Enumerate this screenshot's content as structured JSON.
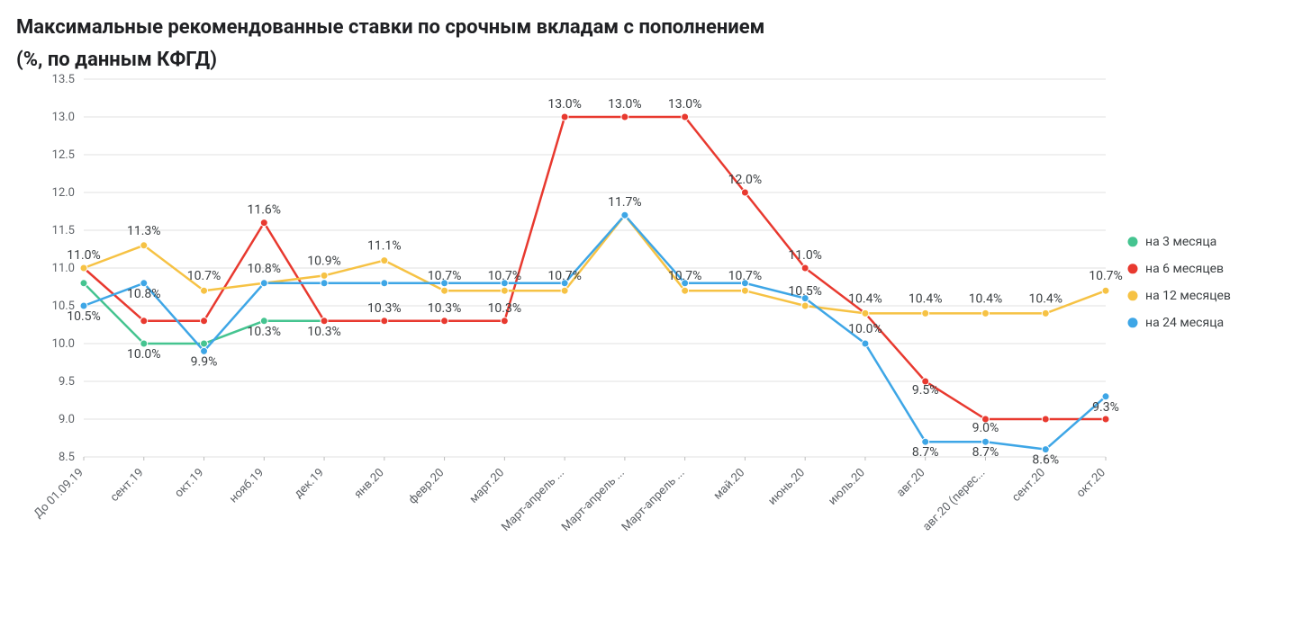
{
  "title_line1": "Максимальные рекомендованные ставки по срочным вкладам с пополнением",
  "title_line2": "(%, по данным КФГД)",
  "chart": {
    "type": "line",
    "background_color": "#ffffff",
    "grid_color": "#e0e0e0",
    "axis_label_color": "#5f6368",
    "text_color": "#3c4043",
    "title_fontsize": 22,
    "axis_fontsize": 13,
    "datalabel_fontsize": 14,
    "line_width": 2.5,
    "marker_radius": 4,
    "ylim": [
      8.5,
      13.5
    ],
    "ytick_step": 0.5,
    "yticks": [
      8.5,
      9.0,
      9.5,
      10.0,
      10.5,
      11.0,
      11.5,
      12.0,
      12.5,
      13.0,
      13.5
    ],
    "categories": [
      "До 01.09.19",
      "сент.19",
      "окт.19",
      "нояб.19",
      "дек.19",
      "янв.20",
      "февр.20",
      "март.20",
      "Март-апрель ...",
      "Март-апрель ...",
      "Март-апрель ...",
      "май.20",
      "июнь.20",
      "июль.20",
      "авг.20",
      "авг.20 (перес...",
      "сент.20",
      "окт.20"
    ],
    "series": [
      {
        "name": "на 3 месяца",
        "color": "#45c490",
        "values": [
          10.8,
          10.0,
          10.0,
          10.3,
          10.3
        ],
        "labels": [
          "",
          "10.0%",
          "",
          "10.3%",
          "10.3%"
        ]
      },
      {
        "name": "на 6 месяцев",
        "color": "#e8392f",
        "values": [
          11.0,
          10.3,
          10.3,
          11.6,
          10.3,
          10.3,
          10.3,
          10.3,
          13.0,
          13.0,
          13.0,
          12.0,
          11.0,
          10.4,
          9.5,
          9.0,
          9.0,
          9.0
        ],
        "labels": [
          "11.0%",
          "",
          "",
          "11.6%",
          "",
          "10.3%",
          "10.3%",
          "10.3%",
          "13.0%",
          "13.0%",
          "13.0%",
          "12.0%",
          "11.0%",
          "",
          "9.5%",
          "9.0%",
          "",
          ""
        ]
      },
      {
        "name": "на 12 месяцев",
        "color": "#f6c244",
        "values": [
          11.0,
          11.3,
          10.7,
          10.8,
          10.9,
          11.1,
          10.7,
          10.7,
          10.7,
          11.7,
          10.7,
          10.7,
          10.5,
          10.4,
          10.4,
          10.4,
          10.4,
          10.7
        ],
        "labels": [
          "",
          "11.3%",
          "10.7%",
          "10.8%",
          "10.9%",
          "11.1%",
          "10.7%",
          "10.7%",
          "10.7%",
          "",
          "10.7%",
          "10.7%",
          "10.5%",
          "10.4%",
          "10.4%",
          "10.4%",
          "10.4%",
          "10.7%"
        ]
      },
      {
        "name": "на 24 месяца",
        "color": "#3ea6e6",
        "values": [
          10.5,
          10.8,
          9.9,
          10.8,
          10.8,
          10.8,
          10.8,
          10.8,
          10.8,
          11.7,
          10.8,
          10.8,
          10.6,
          10.0,
          8.7,
          8.7,
          8.6,
          9.3
        ],
        "labels": [
          "10.5%",
          "10.8%",
          "9.9%",
          "",
          "",
          "",
          "",
          "",
          "",
          "11.7%",
          "",
          "",
          "",
          "10.0%",
          "8.7%",
          "8.7%",
          "8.6%",
          "9.3%"
        ]
      }
    ],
    "legend_position": "right"
  }
}
